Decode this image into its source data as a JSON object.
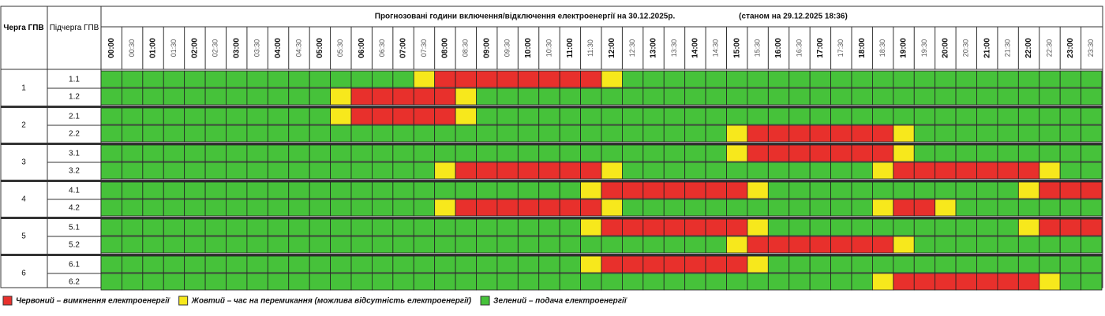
{
  "header": {
    "queue": "Черга ГПВ",
    "subqueue": "Підчерга ГПВ",
    "title": "Прогнозовані години включення/відключення електроенергії на 30.12.2025р.",
    "status": "(станом на 29.12.2025 18:36)"
  },
  "times": [
    "00:00",
    "00:30",
    "01:00",
    "01:30",
    "02:00",
    "02:30",
    "03:00",
    "03:30",
    "04:00",
    "04:30",
    "05:00",
    "05:30",
    "06:00",
    "06:30",
    "07:00",
    "07:30",
    "08:00",
    "08:30",
    "09:00",
    "09:30",
    "10:00",
    "10:30",
    "11:00",
    "11:30",
    "12:00",
    "12:30",
    "13:00",
    "13:30",
    "14:00",
    "14:30",
    "15:00",
    "15:30",
    "16:00",
    "16:30",
    "17:00",
    "17:30",
    "18:00",
    "18:30",
    "19:00",
    "19:30",
    "20:00",
    "20:30",
    "21:00",
    "21:30",
    "22:00",
    "22:30",
    "23:00",
    "23:30"
  ],
  "legend": [
    {
      "color": "#e8302c",
      "label": "Червоний – вимкнення електроенергії"
    },
    {
      "color": "#f7e81c",
      "label": "Жовтий – час на перемикання (можлива відсутність електроенергії)"
    },
    {
      "color": "#46c23a",
      "label": "Зелений – подача електроенергії"
    }
  ],
  "queues": [
    {
      "label": "1",
      "rows": [
        {
          "label": "1.1",
          "cells": "222222222222222100000000122222222222222222222222"
        },
        {
          "label": "1.2",
          "cells": "222222222221000001222222222222222222222222222222"
        }
      ]
    },
    {
      "label": "2",
      "rows": [
        {
          "label": "2.1",
          "cells": "222222222221000001222222222222222222222222222222"
        },
        {
          "label": "2.2",
          "cells": "222222222222222222222222222222100000001222222222"
        }
      ]
    },
    {
      "label": "3",
      "rows": [
        {
          "label": "3.1",
          "cells": "222222222222222222222222222222100000001222222222"
        },
        {
          "label": "3.2",
          "cells": "222222222222222210000000122222222222210000000122"
        }
      ]
    },
    {
      "label": "4",
      "rows": [
        {
          "label": "4.1",
          "cells": "222222222222222222222221000000012222222222221000"
        },
        {
          "label": "4.2",
          "cells": "222222222222222210000000122222222222210012222222"
        }
      ]
    },
    {
      "label": "5",
      "rows": [
        {
          "label": "5.1",
          "cells": "222222222222222222222221000000012222222222221000"
        },
        {
          "label": "5.2",
          "cells": "222222222222222222222222222222100000001222222222"
        }
      ]
    },
    {
      "label": "6",
      "rows": [
        {
          "label": "6.1",
          "cells": "222222222222222222222221000000012222222222222222"
        },
        {
          "label": "6.2",
          "cells": "222222222222222222222222222222222222210000000122"
        }
      ]
    }
  ]
}
